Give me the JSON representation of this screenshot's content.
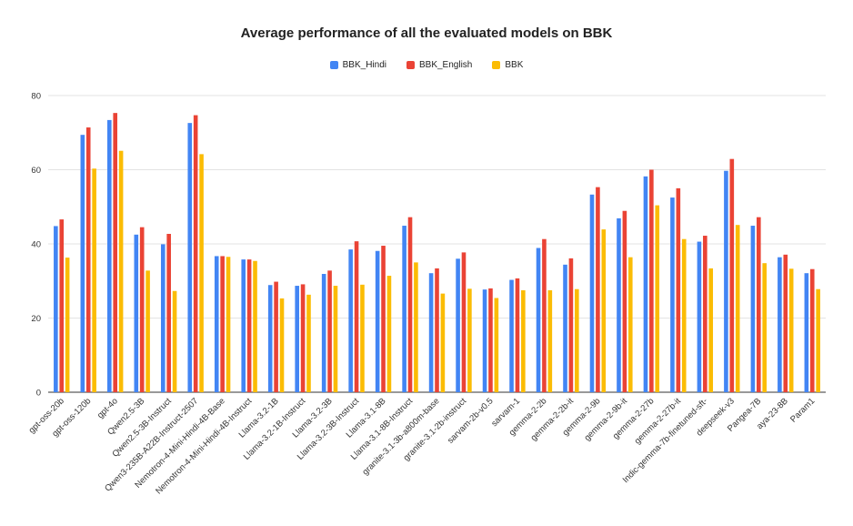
{
  "chart_data": {
    "type": "bar",
    "title": "Average performance of all the evaluated models on BBK",
    "xlabel": "",
    "ylabel": "",
    "ylim": [
      0,
      80
    ],
    "yticks": [
      0,
      20,
      40,
      60,
      80
    ],
    "grid": true,
    "legend_position": "top-center",
    "categories": [
      "gpt-oss-20b",
      "gpt-oss-120b",
      "gpt-4o",
      "Qwen2.5-3B",
      "Qwen2.5-3B-Instruct",
      "Qwen3-235B-A22B-Instruct-2507",
      "Nemotron-4-Mini-Hindi-4B-Base",
      "Nemotron-4-Mini-Hindi-4B-Instruct",
      "Llama-3.2-1B",
      "Llama-3.2-1B-Instruct",
      "Llama-3.2-3B",
      "Llama-3.2-3B-Instruct",
      "Llama-3.1-8B",
      "Llama-3.1-8B-Instruct",
      "granite-3.1-3b-a800m-base",
      "granite-3.1-2b-instruct",
      "sarvam-2b-v0.5",
      "sarvam-1",
      "gemma-2-2b",
      "gemma-2-2b-it",
      "gemma-2-9b",
      "gemma-2-9b-it",
      "gemma-2-27b",
      "gemma-2-27b-it",
      "Indic-gemma-7b-finetuned-sft-",
      "deepseek-v3",
      "Pangea-7B",
      "aya-23-8B",
      "Param1"
    ],
    "series": [
      {
        "name": "BBK_Hindi",
        "color": "#4285f4",
        "values": [
          44.8,
          69.4,
          73.4,
          42.5,
          39.9,
          72.6,
          36.7,
          35.8,
          28.9,
          28.7,
          31.9,
          38.5,
          38.1,
          44.9,
          32.1,
          36.0,
          27.7,
          30.3,
          38.9,
          34.4,
          53.3,
          46.9,
          58.2,
          52.5,
          40.6,
          59.7,
          44.9,
          36.4,
          32.1
        ]
      },
      {
        "name": "BBK_English",
        "color": "#ea4335",
        "values": [
          46.6,
          71.4,
          75.3,
          44.5,
          42.7,
          74.7,
          36.7,
          35.8,
          29.8,
          29.1,
          32.8,
          40.7,
          39.5,
          47.2,
          33.4,
          37.7,
          28.0,
          30.7,
          41.3,
          36.1,
          55.3,
          48.9,
          60.0,
          55.0,
          42.2,
          62.9,
          47.2,
          37.1,
          33.2
        ]
      },
      {
        "name": "BBK",
        "color": "#fbbc04",
        "values": [
          36.3,
          60.3,
          65.1,
          32.8,
          27.3,
          64.2,
          36.5,
          35.4,
          25.3,
          26.3,
          28.7,
          29.0,
          31.4,
          35.0,
          26.6,
          27.9,
          25.4,
          27.5,
          27.5,
          27.8,
          43.9,
          36.4,
          50.4,
          41.3,
          33.4,
          45.1,
          34.8,
          33.3,
          27.8
        ]
      }
    ]
  }
}
